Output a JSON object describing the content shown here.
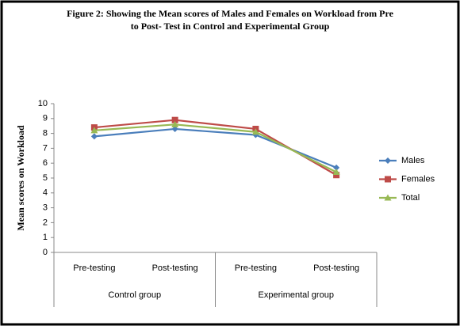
{
  "chart_data": {
    "type": "line",
    "title": [
      "Figure 2: Showing the Mean scores of Males and Females on Workload from Pre",
      "to Post- Test in Control and Experimental Group"
    ],
    "y_label": "Mean scores on Workload",
    "categories": [
      "Pre-testing",
      "Post-testing",
      "Pre-testing",
      "Post-testing"
    ],
    "groups": [
      "Control group",
      "Control group",
      "Experimental group",
      "Experimental group"
    ],
    "series": [
      {
        "name": "Males",
        "color": "#4a7ebb",
        "marker": "diamond",
        "values": [
          7.8,
          8.3,
          7.9,
          5.7
        ]
      },
      {
        "name": "Females",
        "color": "#be4b48",
        "marker": "square",
        "values": [
          8.4,
          8.9,
          8.3,
          5.2
        ]
      },
      {
        "name": "Total",
        "color": "#98b954",
        "marker": "triangle",
        "values": [
          8.2,
          8.6,
          8.1,
          5.4
        ]
      }
    ],
    "ylim": [
      0,
      10
    ],
    "yticks": [
      0,
      1,
      2,
      3,
      4,
      5,
      6,
      7,
      8,
      9,
      10
    ],
    "legend": "right"
  }
}
